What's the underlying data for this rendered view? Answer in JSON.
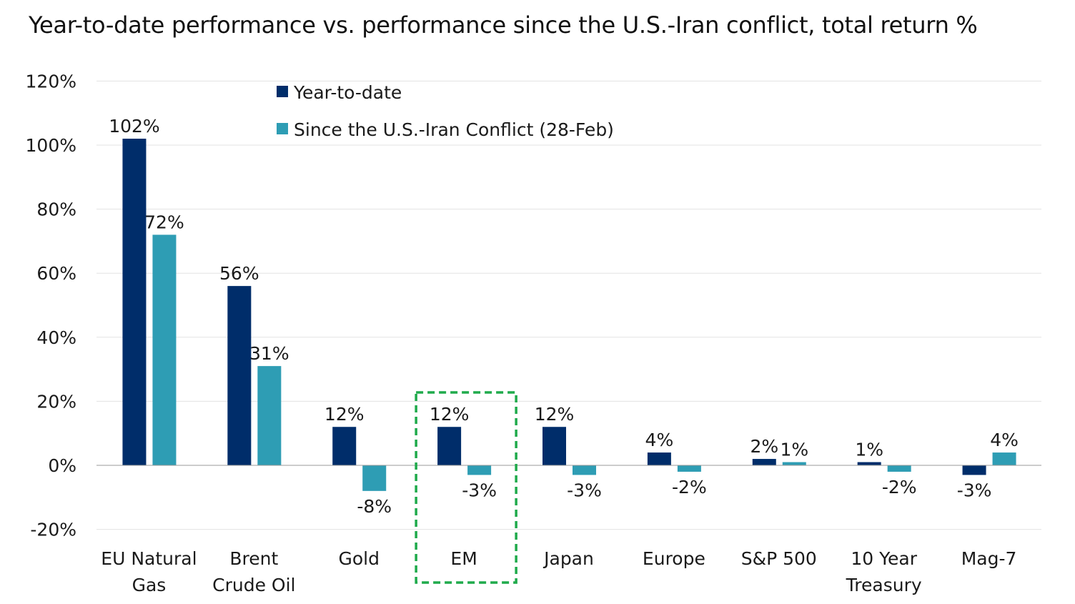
{
  "chart_data": {
    "type": "bar",
    "title": "Year-to-date performance vs. performance since the U.S.-Iran conflict, total return %",
    "categories": [
      [
        "EU Natural",
        "Gas"
      ],
      [
        "Brent",
        "Crude Oil"
      ],
      [
        "Gold"
      ],
      [
        "EM"
      ],
      [
        "Japan"
      ],
      [
        "Europe"
      ],
      [
        "S&P 500"
      ],
      [
        "10 Year",
        "Treasury"
      ],
      [
        "Mag-7"
      ]
    ],
    "series": [
      {
        "name": "Year-to-date",
        "color": "#002D6A",
        "values": [
          102,
          56,
          12,
          12,
          12,
          4,
          2,
          1,
          -3
        ],
        "labels": [
          "102%",
          "56%",
          "12%",
          "12%",
          "12%",
          "4%",
          "2%",
          "1%",
          "-3%"
        ]
      },
      {
        "name": "Since the U.S.-Iran Conflict (28-Feb)",
        "color": "#2E9DB4",
        "values": [
          72,
          31,
          -8,
          -3,
          -3,
          -2,
          1,
          -2,
          4
        ],
        "labels": [
          "72%",
          "31%",
          "-8%",
          "-3%",
          "-3%",
          "-2%",
          "1%",
          "-2%",
          "4%"
        ]
      }
    ],
    "ylim": [
      -20,
      120
    ],
    "yticks": [
      -20,
      0,
      20,
      40,
      60,
      80,
      100,
      120
    ],
    "ytick_labels": [
      "-20%",
      "0%",
      "20%",
      "40%",
      "60%",
      "80%",
      "100%",
      "120%"
    ],
    "grid": true,
    "legend": "top-center",
    "highlight": {
      "category": "EM",
      "color": "#1FAA4B",
      "style": "dashed"
    }
  }
}
